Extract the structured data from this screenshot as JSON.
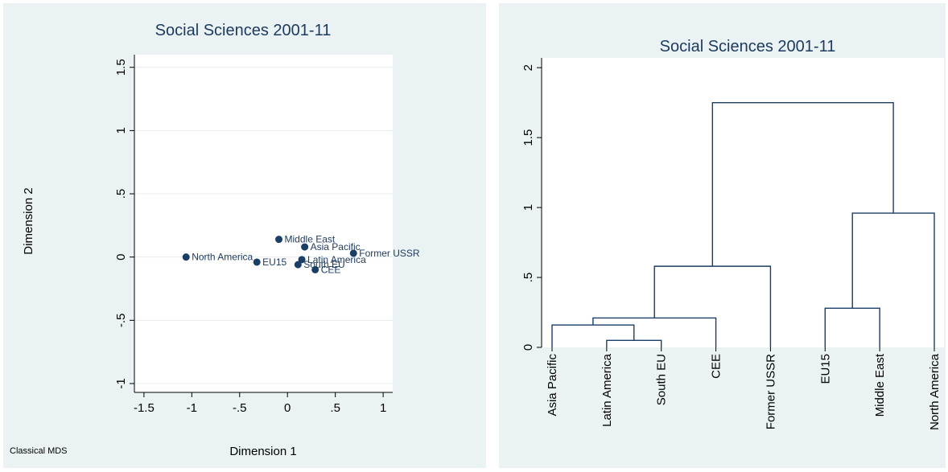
{
  "chart_data": [
    {
      "type": "scatter",
      "title": "Social Sciences 2001-11",
      "xlabel": "Dimension 1",
      "ylabel": "Dimension 2",
      "note": "Classical MDS",
      "xlim": [
        -1.6,
        1.1
      ],
      "ylim": [
        -1.07,
        1.6
      ],
      "xticks": [
        -1.5,
        -1,
        -0.5,
        0,
        0.5,
        1
      ],
      "xtick_labels": [
        "-1.5",
        "-1",
        "-.5",
        "0",
        ".5",
        "1"
      ],
      "yticks": [
        -1,
        -0.5,
        0,
        0.5,
        1,
        1.5
      ],
      "ytick_labels": [
        "-1",
        "-.5",
        "0",
        ".5",
        "1",
        "1.5"
      ],
      "grid": true,
      "marker_color": "#1a3e66",
      "points": [
        {
          "label": "North America",
          "x": -1.06,
          "y": 0.0
        },
        {
          "label": "EU15",
          "x": -0.32,
          "y": -0.04
        },
        {
          "label": "Middle East",
          "x": -0.09,
          "y": 0.14
        },
        {
          "label": "Asia Pacific",
          "x": 0.18,
          "y": 0.08
        },
        {
          "label": "Latin America",
          "x": 0.15,
          "y": -0.02
        },
        {
          "label": "South EU",
          "x": 0.11,
          "y": -0.06
        },
        {
          "label": "CEE",
          "x": 0.29,
          "y": -0.1
        },
        {
          "label": "Former USSR",
          "x": 0.69,
          "y": 0.03
        }
      ]
    },
    {
      "type": "dendrogram",
      "title": "Social Sciences 2001-11",
      "ylim": [
        0,
        2.07
      ],
      "yticks": [
        0,
        0.5,
        1,
        1.5,
        2
      ],
      "ytick_labels": [
        "0",
        ".5",
        "1",
        "1.5",
        "2"
      ],
      "grid": false,
      "line_color": "#1a3e66",
      "leaves": [
        "Asia Pacific",
        "Latin America",
        "South EU",
        "CEE",
        "Former USSR",
        "EU15",
        "Middle East",
        "North America"
      ],
      "merges": [
        {
          "left": "Latin America",
          "right": "South EU",
          "height": 0.05,
          "id": "c1"
        },
        {
          "left": "Asia Pacific",
          "right": "c1",
          "height": 0.16,
          "id": "c2"
        },
        {
          "left": "c2",
          "right": "CEE",
          "height": 0.21,
          "id": "c3"
        },
        {
          "left": "c3",
          "right": "Former USSR",
          "height": 0.58,
          "id": "c4"
        },
        {
          "left": "EU15",
          "right": "Middle East",
          "height": 0.28,
          "id": "c5"
        },
        {
          "left": "c5",
          "right": "North America",
          "height": 0.96,
          "id": "c6"
        },
        {
          "left": "c4",
          "right": "c6",
          "height": 1.75,
          "id": "c7"
        }
      ]
    }
  ]
}
